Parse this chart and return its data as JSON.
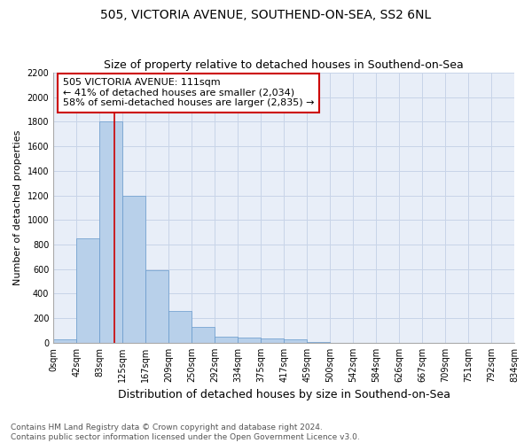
{
  "title1": "505, VICTORIA AVENUE, SOUTHEND-ON-SEA, SS2 6NL",
  "title2": "Size of property relative to detached houses in Southend-on-Sea",
  "xlabel": "Distribution of detached houses by size in Southend-on-Sea",
  "ylabel": "Number of detached properties",
  "footnote1": "Contains HM Land Registry data © Crown copyright and database right 2024.",
  "footnote2": "Contains public sector information licensed under the Open Government Licence v3.0.",
  "bar_edges": [
    0,
    42,
    83,
    125,
    167,
    209,
    250,
    292,
    334,
    375,
    417,
    459,
    500,
    542,
    584,
    626,
    667,
    709,
    751,
    792,
    834
  ],
  "bar_heights": [
    25,
    850,
    1800,
    1200,
    590,
    260,
    130,
    50,
    45,
    35,
    25,
    10,
    0,
    0,
    0,
    0,
    0,
    0,
    0,
    0
  ],
  "bar_color": "#b8d0ea",
  "bar_edge_color": "#6699cc",
  "grid_color": "#c8d4e8",
  "bg_color": "#e8eef8",
  "property_size": 111,
  "annotation_line1": "505 VICTORIA AVENUE: 111sqm",
  "annotation_line2": "← 41% of detached houses are smaller (2,034)",
  "annotation_line3": "58% of semi-detached houses are larger (2,835) →",
  "annotation_box_color": "#ffffff",
  "annotation_box_edge": "#cc0000",
  "vline_color": "#cc0000",
  "ylim": [
    0,
    2200
  ],
  "xlim": [
    0,
    834
  ],
  "yticks": [
    0,
    200,
    400,
    600,
    800,
    1000,
    1200,
    1400,
    1600,
    1800,
    2000,
    2200
  ],
  "title1_fontsize": 10,
  "title2_fontsize": 9,
  "xlabel_fontsize": 9,
  "ylabel_fontsize": 8,
  "tick_fontsize": 7,
  "annot_fontsize": 8,
  "footnote_fontsize": 6.5
}
